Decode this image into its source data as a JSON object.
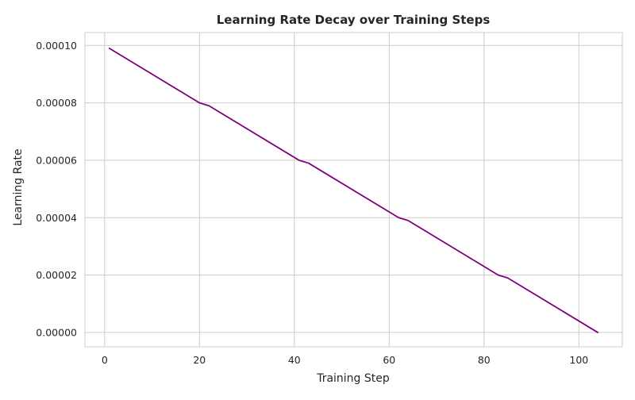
{
  "chart_data": {
    "type": "line",
    "title": "Learning Rate Decay over Training Steps",
    "xlabel": "Training Step",
    "ylabel": "Learning Rate",
    "xlim": [
      -4.15,
      109.15
    ],
    "ylim": [
      -5e-06,
      0.0001045
    ],
    "xticks": [
      0,
      20,
      40,
      60,
      80,
      100
    ],
    "xtick_labels": [
      "0",
      "20",
      "40",
      "60",
      "80",
      "100"
    ],
    "yticks": [
      0.0,
      2e-05,
      4e-05,
      6e-05,
      8e-05,
      0.0001
    ],
    "ytick_labels": [
      "0.00000",
      "0.00002",
      "0.00004",
      "0.00006",
      "0.00008",
      "0.00010"
    ],
    "grid": true,
    "series": [
      {
        "color": "#800080",
        "x": [
          1,
          20,
          22,
          41,
          43,
          62,
          64,
          83,
          85,
          104
        ],
        "y": [
          9.9e-05,
          8e-05,
          7.9e-05,
          6e-05,
          5.9e-05,
          4e-05,
          3.9e-05,
          2e-05,
          1.9e-05,
          0.0
        ]
      }
    ]
  }
}
